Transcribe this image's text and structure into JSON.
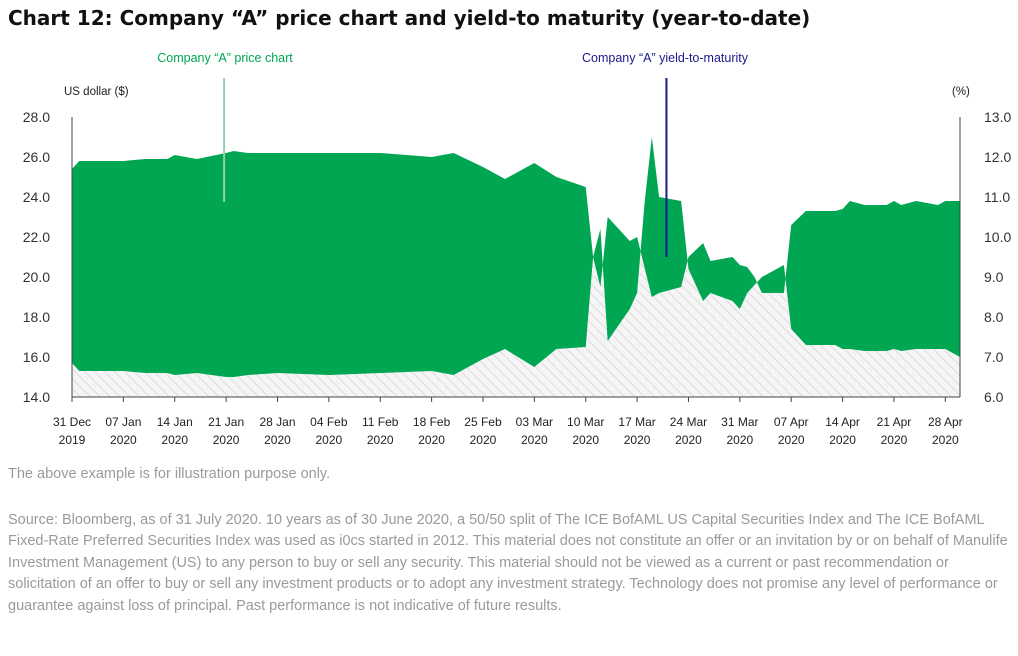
{
  "title": "Chart 12: Company “A” price chart and yield-to maturity (year-to-date)",
  "note": "The above example is for illustration purpose only.",
  "source": "Source: Bloomberg, as of 31 July 2020. 10 years as of 30 June 2020, a 50/50 split of The ICE BofAML US Capital Securities Index and The ICE BofAML Fixed-Rate Preferred Securities Index was used as i0cs started in 2012. This material does not constitute an offer or an invitation by or on behalf of Manulife Investment Management (US) to any person to buy or sell any security. This material should not be viewed as a current or past recommendation or solicitation of an offer to buy or sell any investment products or to adopt any investment strategy. Technology does not promise any level of performance or guarantee against loss of principal. Past performance is not indicative of future results.",
  "colors": {
    "price": "#00a651",
    "ytm": "#1a1a8c",
    "hatch_line": "#dcdcdc"
  },
  "chart_data": {
    "type": "area",
    "ylabel_left": "US dollar ($)",
    "ylabel_right": "(%)",
    "ylim_left": [
      14.0,
      28.0
    ],
    "ylim_right": [
      6.0,
      13.0
    ],
    "yticks_left": [
      "28.0",
      "26.0",
      "24.0",
      "22.0",
      "20.0",
      "18.0",
      "16.0",
      "14.0"
    ],
    "yticks_right": [
      "13.0",
      "12.0",
      "11.0",
      "10.0",
      "9.0",
      "8.0",
      "7.0",
      "6.0"
    ],
    "xticks": [
      {
        "date": "2019-12-31",
        "line1": "31 Dec",
        "line2": "2019"
      },
      {
        "date": "2020-01-07",
        "line1": "07 Jan",
        "line2": "2020"
      },
      {
        "date": "2020-01-14",
        "line1": "14 Jan",
        "line2": "2020"
      },
      {
        "date": "2020-01-21",
        "line1": "21 Jan",
        "line2": "2020"
      },
      {
        "date": "2020-01-28",
        "line1": "28 Jan",
        "line2": "2020"
      },
      {
        "date": "2020-02-04",
        "line1": "04 Feb",
        "line2": "2020"
      },
      {
        "date": "2020-02-11",
        "line1": "11 Feb",
        "line2": "2020"
      },
      {
        "date": "2020-02-18",
        "line1": "18 Feb",
        "line2": "2020"
      },
      {
        "date": "2020-02-25",
        "line1": "25 Feb",
        "line2": "2020"
      },
      {
        "date": "2020-03-03",
        "line1": "03 Mar",
        "line2": "2020"
      },
      {
        "date": "2020-03-10",
        "line1": "10 Mar",
        "line2": "2020"
      },
      {
        "date": "2020-03-17",
        "line1": "17 Mar",
        "line2": "2020"
      },
      {
        "date": "2020-03-24",
        "line1": "24 Mar",
        "line2": "2020"
      },
      {
        "date": "2020-03-31",
        "line1": "31 Mar",
        "line2": "2020"
      },
      {
        "date": "2020-04-07",
        "line1": "07 Apr",
        "line2": "2020"
      },
      {
        "date": "2020-04-14",
        "line1": "14 Apr",
        "line2": "2020"
      },
      {
        "date": "2020-04-21",
        "line1": "21 Apr",
        "line2": "2020"
      },
      {
        "date": "2020-04-28",
        "line1": "28 Apr",
        "line2": "2020"
      }
    ],
    "x_last": "2020-04-30",
    "series": [
      {
        "name": "Company “A” price chart",
        "axis": "left",
        "x": [
          "2019-12-31",
          "2020-01-01",
          "2020-01-07",
          "2020-01-10",
          "2020-01-13",
          "2020-01-14",
          "2020-01-17",
          "2020-01-21",
          "2020-01-22",
          "2020-01-24",
          "2020-01-28",
          "2020-02-04",
          "2020-02-11",
          "2020-02-18",
          "2020-02-21",
          "2020-02-25",
          "2020-02-28",
          "2020-03-03",
          "2020-03-06",
          "2020-03-10",
          "2020-03-11",
          "2020-03-12",
          "2020-03-13",
          "2020-03-16",
          "2020-03-17",
          "2020-03-18",
          "2020-03-19",
          "2020-03-20",
          "2020-03-23",
          "2020-03-24",
          "2020-03-26",
          "2020-03-27",
          "2020-03-30",
          "2020-03-31",
          "2020-04-01",
          "2020-04-02",
          "2020-04-03",
          "2020-04-06",
          "2020-04-07",
          "2020-04-09",
          "2020-04-13",
          "2020-04-14",
          "2020-04-15",
          "2020-04-17",
          "2020-04-20",
          "2020-04-21",
          "2020-04-22",
          "2020-04-24",
          "2020-04-27",
          "2020-04-28",
          "2020-04-30"
        ],
        "values": [
          25.4,
          25.8,
          25.8,
          25.9,
          25.9,
          26.1,
          25.9,
          26.2,
          26.3,
          26.2,
          26.2,
          26.2,
          26.2,
          26.0,
          26.2,
          25.5,
          24.9,
          25.7,
          25.0,
          24.5,
          21.0,
          19.5,
          23.0,
          21.8,
          22.0,
          20.5,
          19.0,
          19.2,
          19.5,
          21.0,
          21.7,
          20.8,
          21.0,
          20.6,
          20.5,
          20.0,
          19.2,
          19.2,
          22.6,
          23.3,
          23.3,
          23.4,
          23.8,
          23.6,
          23.6,
          23.8,
          23.6,
          23.8,
          23.6,
          23.8,
          23.8
        ]
      },
      {
        "name": "Company “A” yield-to-maturity",
        "axis": "right",
        "x": [
          "2019-12-31",
          "2020-01-01",
          "2020-01-07",
          "2020-01-10",
          "2020-01-13",
          "2020-01-14",
          "2020-01-17",
          "2020-01-21",
          "2020-01-22",
          "2020-01-24",
          "2020-01-28",
          "2020-02-04",
          "2020-02-11",
          "2020-02-18",
          "2020-02-21",
          "2020-02-25",
          "2020-02-28",
          "2020-03-03",
          "2020-03-06",
          "2020-03-10",
          "2020-03-11",
          "2020-03-12",
          "2020-03-13",
          "2020-03-16",
          "2020-03-17",
          "2020-03-18",
          "2020-03-19",
          "2020-03-20",
          "2020-03-23",
          "2020-03-24",
          "2020-03-26",
          "2020-03-27",
          "2020-03-30",
          "2020-03-31",
          "2020-04-01",
          "2020-04-02",
          "2020-04-03",
          "2020-04-06",
          "2020-04-07",
          "2020-04-09",
          "2020-04-13",
          "2020-04-14",
          "2020-04-15",
          "2020-04-17",
          "2020-04-20",
          "2020-04-21",
          "2020-04-22",
          "2020-04-24",
          "2020-04-27",
          "2020-04-28",
          "2020-04-30"
        ],
        "values": [
          6.85,
          6.65,
          6.65,
          6.6,
          6.6,
          6.55,
          6.6,
          6.5,
          6.5,
          6.55,
          6.6,
          6.55,
          6.6,
          6.65,
          6.55,
          6.95,
          7.2,
          6.75,
          7.2,
          7.25,
          9.5,
          10.2,
          7.4,
          8.2,
          8.6,
          10.8,
          12.5,
          11.0,
          10.9,
          9.2,
          8.4,
          8.6,
          8.4,
          8.2,
          8.6,
          8.8,
          9.0,
          9.3,
          7.7,
          7.3,
          7.3,
          7.2,
          7.2,
          7.15,
          7.15,
          7.2,
          7.15,
          7.2,
          7.2,
          7.2,
          7.0
        ]
      }
    ],
    "legend": [
      "Company “A” price chart",
      "Company “A” yield-to-maturity"
    ]
  }
}
